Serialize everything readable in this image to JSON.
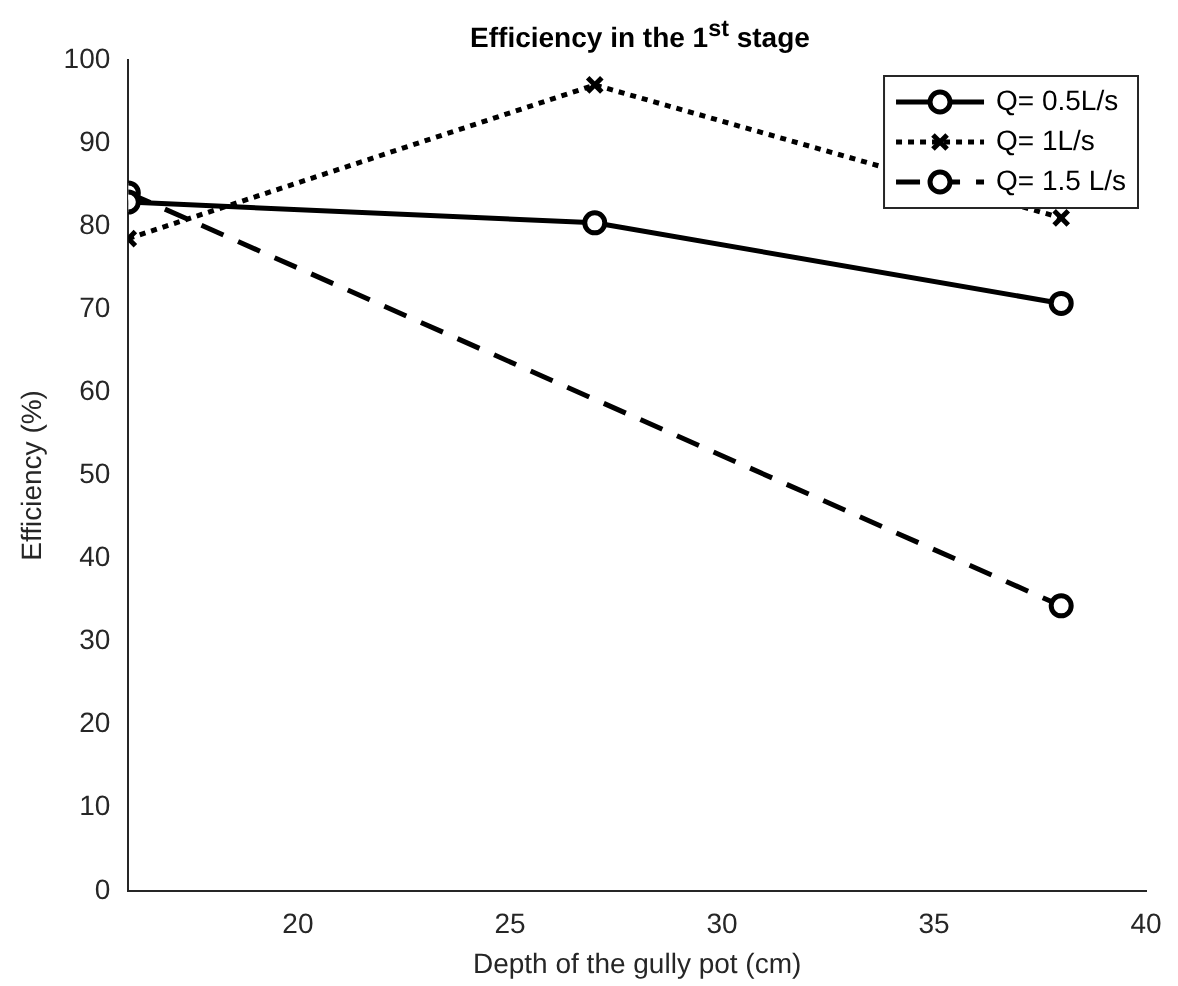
{
  "chart_data": {
    "type": "line",
    "title": "Efficiency in the 1$^{st}$ stage",
    "xlabel": "Depth of the gully pot (cm)",
    "ylabel": "Efficiency (%)",
    "x": [
      16,
      27,
      38
    ],
    "series": [
      {
        "name": "Q= 0.5L/s",
        "color": "#000000",
        "values": [
          82.9,
          80.4,
          70.7
        ],
        "marker": "circle",
        "line_style": "solid"
      },
      {
        "name": "Q= 1L/s",
        "color": "#000000",
        "values": [
          78.5,
          97.0,
          81.0
        ],
        "marker": "cross",
        "line_style": "dotted"
      },
      {
        "name": "Q= 1.5 L/s",
        "color": "#000000",
        "values": [
          84.0,
          null,
          34.3
        ],
        "marker": "circle",
        "line_style": "dashed"
      }
    ],
    "xlim": [
      16,
      40
    ],
    "xticks": [
      20,
      25,
      30,
      35,
      40
    ],
    "ylim": [
      0,
      100
    ],
    "yticks": [
      0,
      10,
      20,
      30,
      40,
      50,
      60,
      70,
      80,
      90,
      100
    ],
    "grid": false,
    "legend": "top right"
  }
}
